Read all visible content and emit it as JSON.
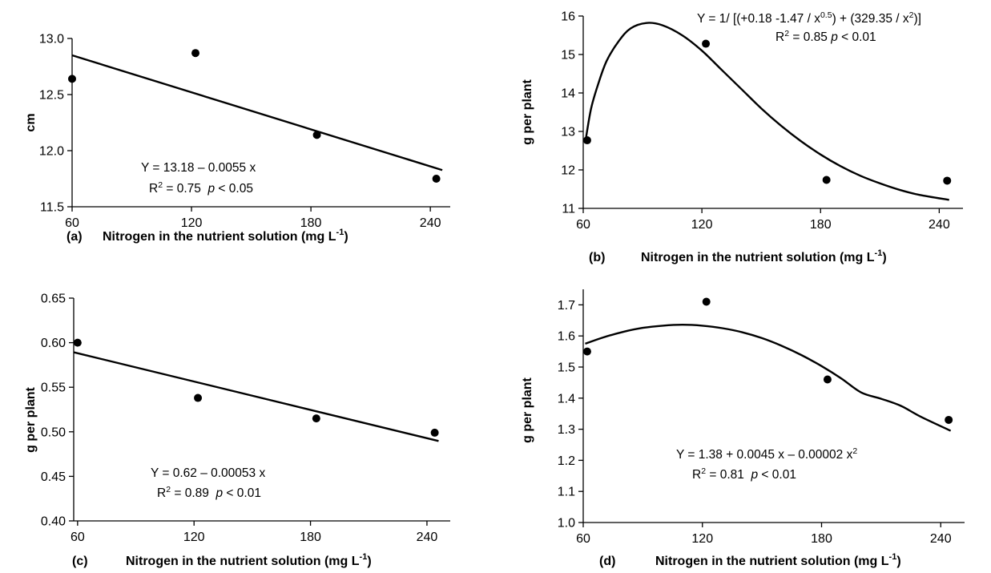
{
  "chart_data": [
    {
      "id": "a",
      "type": "scatter",
      "panel_label": "(a)",
      "xlabel": "Nitrogen in the nutrient solution (mg L",
      "xlabel_sup": "-1",
      "xlabel_end": ")",
      "ylabel": "cm",
      "xlim": [
        60,
        250
      ],
      "ylim": [
        11.5,
        13.0
      ],
      "xticks": [
        60,
        120,
        180,
        240
      ],
      "yticks": [
        11.5,
        12.0,
        12.5,
        13.0
      ],
      "ytick_decimals": 1,
      "points": [
        {
          "x": 60,
          "y": 12.64
        },
        {
          "x": 122,
          "y": 12.87
        },
        {
          "x": 183,
          "y": 12.14
        },
        {
          "x": 243,
          "y": 11.75
        }
      ],
      "fit": {
        "kind": "linear",
        "a": 13.18,
        "b": -0.0055,
        "x_range": [
          60,
          246
        ]
      },
      "equation": "Y = 13.18 – 0.0055 x",
      "r2_label": "R",
      "r2_sup": "2",
      "r2_value": " = 0.75  ",
      "p_label": "p",
      "p_value": " < 0.05"
    },
    {
      "id": "b",
      "type": "scatter",
      "panel_label": "(b)",
      "xlabel": "Nitrogen in the nutrient solution (mg L",
      "xlabel_sup": "-1",
      "xlabel_end": ")",
      "ylabel": "g per plant",
      "xlim": [
        60,
        252
      ],
      "ylim": [
        11,
        16
      ],
      "xticks": [
        60,
        120,
        180,
        240
      ],
      "yticks": [
        11,
        12,
        13,
        14,
        15,
        16
      ],
      "ytick_decimals": 0,
      "points": [
        {
          "x": 62,
          "y": 12.77
        },
        {
          "x": 122,
          "y": 15.28
        },
        {
          "x": 183,
          "y": 11.74
        },
        {
          "x": 244,
          "y": 11.72
        }
      ],
      "fit": {
        "kind": "smooth",
        "curve": [
          [
            61,
            12.7
          ],
          [
            64,
            13.6
          ],
          [
            68,
            14.3
          ],
          [
            72,
            14.85
          ],
          [
            78,
            15.35
          ],
          [
            84,
            15.68
          ],
          [
            92,
            15.82
          ],
          [
            100,
            15.76
          ],
          [
            110,
            15.5
          ],
          [
            120,
            15.1
          ],
          [
            130,
            14.6
          ],
          [
            140,
            14.1
          ],
          [
            150,
            13.6
          ],
          [
            160,
            13.15
          ],
          [
            170,
            12.75
          ],
          [
            180,
            12.4
          ],
          [
            190,
            12.1
          ],
          [
            200,
            11.85
          ],
          [
            210,
            11.65
          ],
          [
            220,
            11.48
          ],
          [
            230,
            11.35
          ],
          [
            245,
            11.22
          ]
        ]
      },
      "equation_pre": "Y = 1/ [(+0.18 -1.47 / x",
      "equation_sup1": "0.5",
      "equation_mid": ") + (329.35 / x",
      "equation_sup2": "2",
      "equation_end": ")]",
      "r2_label": "R",
      "r2_sup": "2",
      "r2_value": " = 0.85 ",
      "p_label": "p",
      "p_value": " < 0.01"
    },
    {
      "id": "c",
      "type": "scatter",
      "panel_label": "(c)",
      "xlabel": "Nitrogen in the nutrient solution (mg L",
      "xlabel_sup": "-1",
      "xlabel_end": ")",
      "ylabel": "g per plant",
      "xlim": [
        58,
        252
      ],
      "ylim": [
        0.4,
        0.65
      ],
      "xticks": [
        60,
        120,
        180,
        240
      ],
      "yticks": [
        0.4,
        0.45,
        0.5,
        0.55,
        0.6,
        0.65
      ],
      "ytick_decimals": 2,
      "points": [
        {
          "x": 60,
          "y": 0.6
        },
        {
          "x": 122,
          "y": 0.538
        },
        {
          "x": 183,
          "y": 0.515
        },
        {
          "x": 244,
          "y": 0.499
        }
      ],
      "fit": {
        "kind": "linear",
        "a": 0.62,
        "b": -0.00053,
        "x_range": [
          58,
          246
        ]
      },
      "equation": "Y = 0.62 – 0.00053 x",
      "r2_label": "R",
      "r2_sup": "2",
      "r2_value": " = 0.89  ",
      "p_label": "p",
      "p_value": " < 0.01"
    },
    {
      "id": "d",
      "type": "scatter",
      "panel_label": "(d)",
      "xlabel": "Nitrogen in the nutrient solution (mg L",
      "xlabel_sup": "-1",
      "xlabel_end": ")",
      "ylabel": "g per plant",
      "xlim": [
        60,
        252
      ],
      "ylim": [
        1.0,
        1.75
      ],
      "xticks": [
        60,
        120,
        180,
        240
      ],
      "yticks": [
        1.0,
        1.1,
        1.2,
        1.3,
        1.4,
        1.5,
        1.6,
        1.7
      ],
      "ytick_decimals": 1,
      "points": [
        {
          "x": 62,
          "y": 1.55
        },
        {
          "x": 122,
          "y": 1.71
        },
        {
          "x": 183,
          "y": 1.46
        },
        {
          "x": 244,
          "y": 1.33
        }
      ],
      "fit": {
        "kind": "smooth",
        "curve": [
          [
            61,
            1.575
          ],
          [
            70,
            1.595
          ],
          [
            80,
            1.613
          ],
          [
            90,
            1.626
          ],
          [
            100,
            1.633
          ],
          [
            110,
            1.636
          ],
          [
            120,
            1.633
          ],
          [
            130,
            1.625
          ],
          [
            140,
            1.612
          ],
          [
            150,
            1.593
          ],
          [
            160,
            1.568
          ],
          [
            170,
            1.538
          ],
          [
            180,
            1.503
          ],
          [
            190,
            1.463
          ],
          [
            200,
            1.418
          ],
          [
            210,
            1.398
          ],
          [
            220,
            1.375
          ],
          [
            230,
            1.34
          ],
          [
            245,
            1.295
          ]
        ]
      },
      "equation_pre": "Y = 1.38 + 0.0045 x – 0.00002 x",
      "equation_sup": "2",
      "r2_label": "R",
      "r2_sup": "2",
      "r2_value": " = 0.81  ",
      "p_label": "p",
      "p_value": " < 0.01"
    }
  ]
}
